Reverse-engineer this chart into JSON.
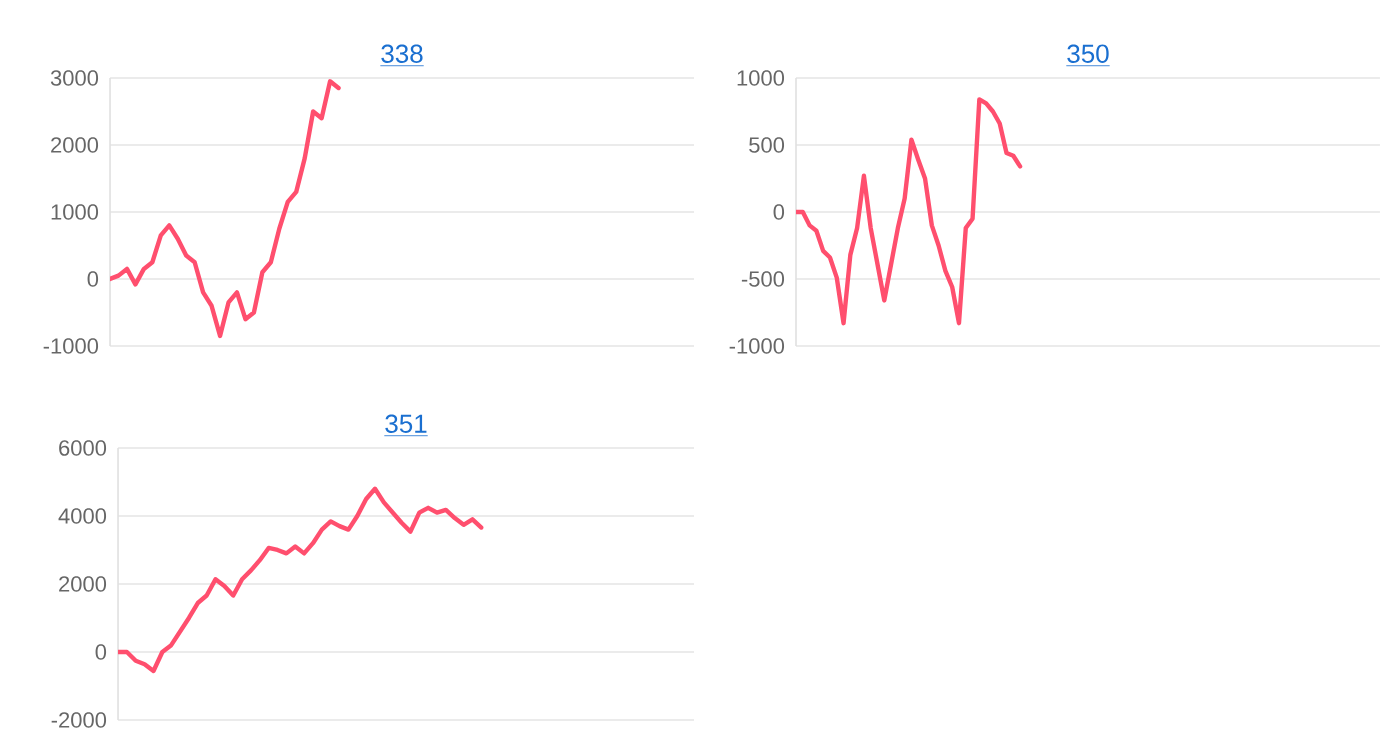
{
  "chart_data": [
    {
      "type": "line",
      "title": "338",
      "color": "#ff4f6e",
      "marker": "none",
      "line_style": "solid",
      "grid": "y",
      "tick_labels": "y",
      "ylim": [
        -1000,
        3000
      ],
      "yticks": [
        -1000,
        0,
        1000,
        2000,
        3000
      ],
      "categories": [
        null,
        null,
        null,
        null,
        null,
        null,
        null,
        null,
        null,
        null,
        null,
        null,
        null,
        null,
        null,
        null,
        null,
        null,
        null,
        null,
        null,
        null,
        null,
        null,
        null,
        null,
        null,
        null,
        null,
        null,
        null,
        null,
        null,
        null,
        null,
        null,
        null,
        null,
        null,
        null,
        null,
        null,
        null,
        null,
        null,
        null,
        null,
        null,
        null,
        null,
        null,
        null,
        null,
        null,
        null,
        null,
        null,
        null,
        null,
        null,
        null,
        null,
        null,
        null,
        null,
        null,
        null,
        null,
        null,
        null
      ],
      "values": [
        0,
        50,
        150,
        -80,
        150,
        250,
        650,
        800,
        600,
        350,
        250,
        -200,
        -400,
        -850,
        -350,
        -200,
        -600,
        -500,
        100,
        250,
        750,
        1150,
        1300,
        1800,
        2500,
        2400,
        2950,
        2850,
        null,
        null,
        null,
        null,
        null,
        null,
        null,
        null,
        null,
        null,
        null,
        null,
        null,
        null,
        null,
        null,
        null,
        null,
        null,
        null,
        null,
        null,
        null,
        null,
        null,
        null,
        null,
        null,
        null,
        null,
        null,
        null,
        null,
        null,
        null,
        null,
        null,
        null,
        null,
        null,
        null,
        null
      ]
    },
    {
      "type": "line",
      "title": "350",
      "color": "#ff4f6e",
      "marker": "none",
      "line_style": "solid",
      "grid": "y",
      "tick_labels": "y",
      "ylim": [
        -1000,
        1000
      ],
      "yticks": [
        -1000,
        -500,
        0,
        500,
        1000
      ],
      "categories": [
        null,
        null,
        null,
        null,
        null,
        null,
        null,
        null,
        null,
        null,
        null,
        null,
        null,
        null,
        null,
        null,
        null,
        null,
        null,
        null,
        null,
        null,
        null,
        null,
        null,
        null,
        null,
        null,
        null,
        null,
        null,
        null,
        null,
        null,
        null,
        null,
        null,
        null,
        null,
        null,
        null,
        null,
        null,
        null,
        null,
        null,
        null,
        null,
        null,
        null,
        null,
        null,
        null,
        null,
        null,
        null,
        null,
        null,
        null,
        null,
        null,
        null,
        null,
        null,
        null,
        null,
        null,
        null,
        null,
        null,
        null,
        null,
        null,
        null,
        null,
        null,
        null,
        null,
        null,
        null,
        null,
        null,
        null,
        null,
        null,
        null,
        null
      ],
      "values": [
        0,
        0,
        -100,
        -140,
        -290,
        -340,
        -490,
        -830,
        -320,
        -120,
        270,
        -120,
        -390,
        -660,
        -390,
        -120,
        100,
        540,
        390,
        250,
        -100,
        -250,
        -440,
        -560,
        -830,
        -120,
        -50,
        840,
        810,
        750,
        660,
        440,
        420,
        340,
        null,
        null,
        null,
        null,
        null,
        null,
        null,
        null,
        null,
        null,
        null,
        null,
        null,
        null,
        null,
        null,
        null,
        null,
        null,
        null,
        null,
        null,
        null,
        null,
        null,
        null,
        null,
        null,
        null,
        null,
        null,
        null,
        null,
        null,
        null,
        null,
        null,
        null,
        null,
        null,
        null,
        null,
        null,
        null,
        null,
        null,
        null,
        null,
        null,
        null,
        null,
        null,
        null
      ]
    },
    {
      "type": "line",
      "title": "351",
      "color": "#ff4f6e",
      "marker": "none",
      "line_style": "solid",
      "grid": "y",
      "tick_labels": "y",
      "ylim": [
        -2000,
        6000
      ],
      "yticks": [
        -2000,
        0,
        2000,
        4000,
        6000
      ],
      "categories": [
        null,
        null,
        null,
        null,
        null,
        null,
        null,
        null,
        null,
        null,
        null,
        null,
        null,
        null,
        null,
        null,
        null,
        null,
        null,
        null,
        null,
        null,
        null,
        null,
        null,
        null,
        null,
        null,
        null,
        null,
        null,
        null,
        null,
        null,
        null,
        null,
        null,
        null,
        null,
        null,
        null,
        null,
        null,
        null,
        null,
        null,
        null,
        null,
        null,
        null,
        null,
        null,
        null,
        null,
        null,
        null,
        null,
        null,
        null,
        null,
        null,
        null,
        null,
        null,
        null,
        null
      ],
      "values": [
        0,
        0,
        -260,
        -360,
        -560,
        0,
        200,
        600,
        1000,
        1440,
        1660,
        2140,
        1940,
        1660,
        2140,
        2400,
        2700,
        3060,
        3000,
        2900,
        3100,
        2900,
        3200,
        3600,
        3840,
        3700,
        3600,
        4000,
        4500,
        4800,
        4400,
        4100,
        3800,
        3540,
        4100,
        4240,
        4100,
        4180,
        3940,
        3740,
        3900,
        3660,
        null,
        null,
        null,
        null,
        null,
        null,
        null,
        null,
        null,
        null,
        null,
        null,
        null,
        null,
        null,
        null,
        null,
        null,
        null,
        null,
        null,
        null,
        null,
        null
      ]
    }
  ]
}
